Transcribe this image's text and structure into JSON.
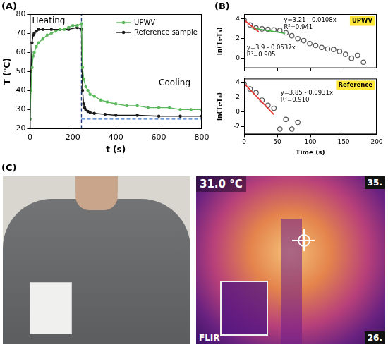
{
  "chart_data": [
    {
      "panel": "(A)",
      "type": "line",
      "x_label": "t (s)",
      "y_label": "T (°C)",
      "xlim": [
        0,
        800
      ],
      "xticks": [
        0,
        200,
        400,
        600,
        800
      ],
      "ylim": [
        20,
        80
      ],
      "yticks": [
        20,
        30,
        40,
        50,
        60,
        70,
        80
      ],
      "grid": false,
      "legend": "upper right",
      "series": [
        {
          "name": "UPWV",
          "color": "#5cb85c",
          "marker": "circle",
          "x": [
            0,
            5,
            10,
            15,
            20,
            30,
            40,
            60,
            80,
            100,
            120,
            140,
            160,
            180,
            200,
            220,
            240,
            245,
            250,
            260,
            270,
            280,
            300,
            330,
            360,
            400,
            450,
            500,
            550,
            600,
            650,
            700,
            750,
            800
          ],
          "values": [
            25,
            40,
            52,
            58,
            60,
            63,
            65,
            67,
            69,
            70,
            71,
            72,
            72,
            73,
            74,
            74,
            75,
            52,
            46,
            42,
            40,
            38,
            37,
            35,
            34,
            33,
            32,
            32,
            31,
            31,
            31,
            30,
            30,
            30
          ]
        },
        {
          "name": "Reference sample",
          "color": "#1a1a1a",
          "marker": "circle",
          "x": [
            0,
            5,
            10,
            15,
            20,
            30,
            40,
            60,
            100,
            140,
            180,
            220,
            240,
            245,
            250,
            255,
            260,
            270,
            280,
            300,
            350,
            400,
            500,
            600,
            700,
            800
          ],
          "values": [
            25,
            50,
            65,
            69,
            70,
            71,
            72,
            72,
            72,
            72,
            72,
            73,
            72,
            40,
            33,
            31,
            30,
            29,
            28.5,
            28,
            27.5,
            27,
            27,
            26.5,
            26.5,
            26.5
          ]
        }
      ],
      "lines": [
        {
          "x": [
            0,
            240
          ],
          "y": [
            80,
            80
          ],
          "color": "#e8322e",
          "line_style": "dashed"
        },
        {
          "x": [
            240,
            800
          ],
          "y": [
            25,
            25
          ],
          "color": "#3a78c9",
          "line_style": "dashed"
        },
        {
          "x": [
            240,
            240
          ],
          "y": [
            20,
            80
          ],
          "color": "#1f3a7a",
          "line_style": "dashed"
        }
      ],
      "annotations": [
        {
          "text": "Heating",
          "x": 10,
          "y": 76.5
        },
        {
          "text": "Cooling",
          "x": 600,
          "y": 44
        }
      ]
    },
    {
      "panel": "(B)",
      "type": "scatter",
      "tag": "UPWV",
      "y_label": "ln(Tₜ-Tₐ)",
      "xlim": [
        0,
        200
      ],
      "xticks": [
        0,
        50,
        100,
        150,
        200
      ],
      "ylim": [
        -1,
        4.5
      ],
      "yticks": [
        0,
        2,
        4
      ],
      "grid": false,
      "tick_labels": "y",
      "series": [
        {
          "color": "#555555",
          "marker": "circle",
          "x": [
            0,
            9,
            18,
            27,
            36,
            45,
            54,
            63,
            72,
            81,
            90,
            99,
            108,
            117,
            126,
            135,
            144,
            153,
            162,
            171,
            180
          ],
          "values": [
            3.9,
            3.4,
            3.1,
            3.0,
            2.95,
            2.9,
            2.85,
            2.6,
            2.3,
            2.0,
            1.8,
            1.5,
            1.3,
            1.1,
            0.95,
            0.9,
            0.7,
            0.4,
            0.0,
            0.3,
            -0.4
          ]
        }
      ],
      "fits": [
        {
          "equation": "y=3.21 - 0.0108x",
          "r2": "R²=0.941",
          "intercept": 3.21,
          "slope": -0.0108,
          "x_range": [
            12,
            62
          ],
          "color": "#3cb043",
          "label_x": 60,
          "label_y": 3.9
        },
        {
          "equation": "y=3.9 - 0.0537x",
          "r2": "R²=0.905",
          "intercept": 3.9,
          "slope": -0.0537,
          "x_range": [
            0,
            22
          ],
          "color": "#e8322e",
          "label_x": 4,
          "label_y": 1.1
        }
      ]
    },
    {
      "type": "scatter",
      "tag": "Reference",
      "x_label": "Time (s)",
      "y_label": "ln(Tₜ-Tₐ)",
      "xlim": [
        0,
        200
      ],
      "xticks": [
        0,
        50,
        100,
        150,
        200
      ],
      "ylim": [
        -3,
        4.5
      ],
      "yticks": [
        -2,
        0,
        2,
        4
      ],
      "grid": false,
      "series": [
        {
          "color": "#555555",
          "marker": "circle",
          "x": [
            0,
            9,
            18,
            27,
            36,
            45,
            54,
            63,
            72,
            81
          ],
          "values": [
            3.8,
            3.1,
            2.6,
            1.6,
            0.9,
            0.5,
            -2.3,
            -1.0,
            -2.3,
            -1.4
          ]
        }
      ],
      "fits": [
        {
          "equation": "y=3.85 - 0.0931x",
          "r2": "R²=0.910",
          "intercept": 3.85,
          "slope": -0.0931,
          "x_range": [
            0,
            45
          ],
          "color": "#e8322e",
          "label_x": 55,
          "label_y": 2.6
        }
      ]
    }
  ],
  "panel_c": {
    "label": "(C)",
    "thermal_readout": "31.0 °C",
    "scale_max": "35.",
    "scale_min": "26.",
    "logo": "FLIR"
  }
}
